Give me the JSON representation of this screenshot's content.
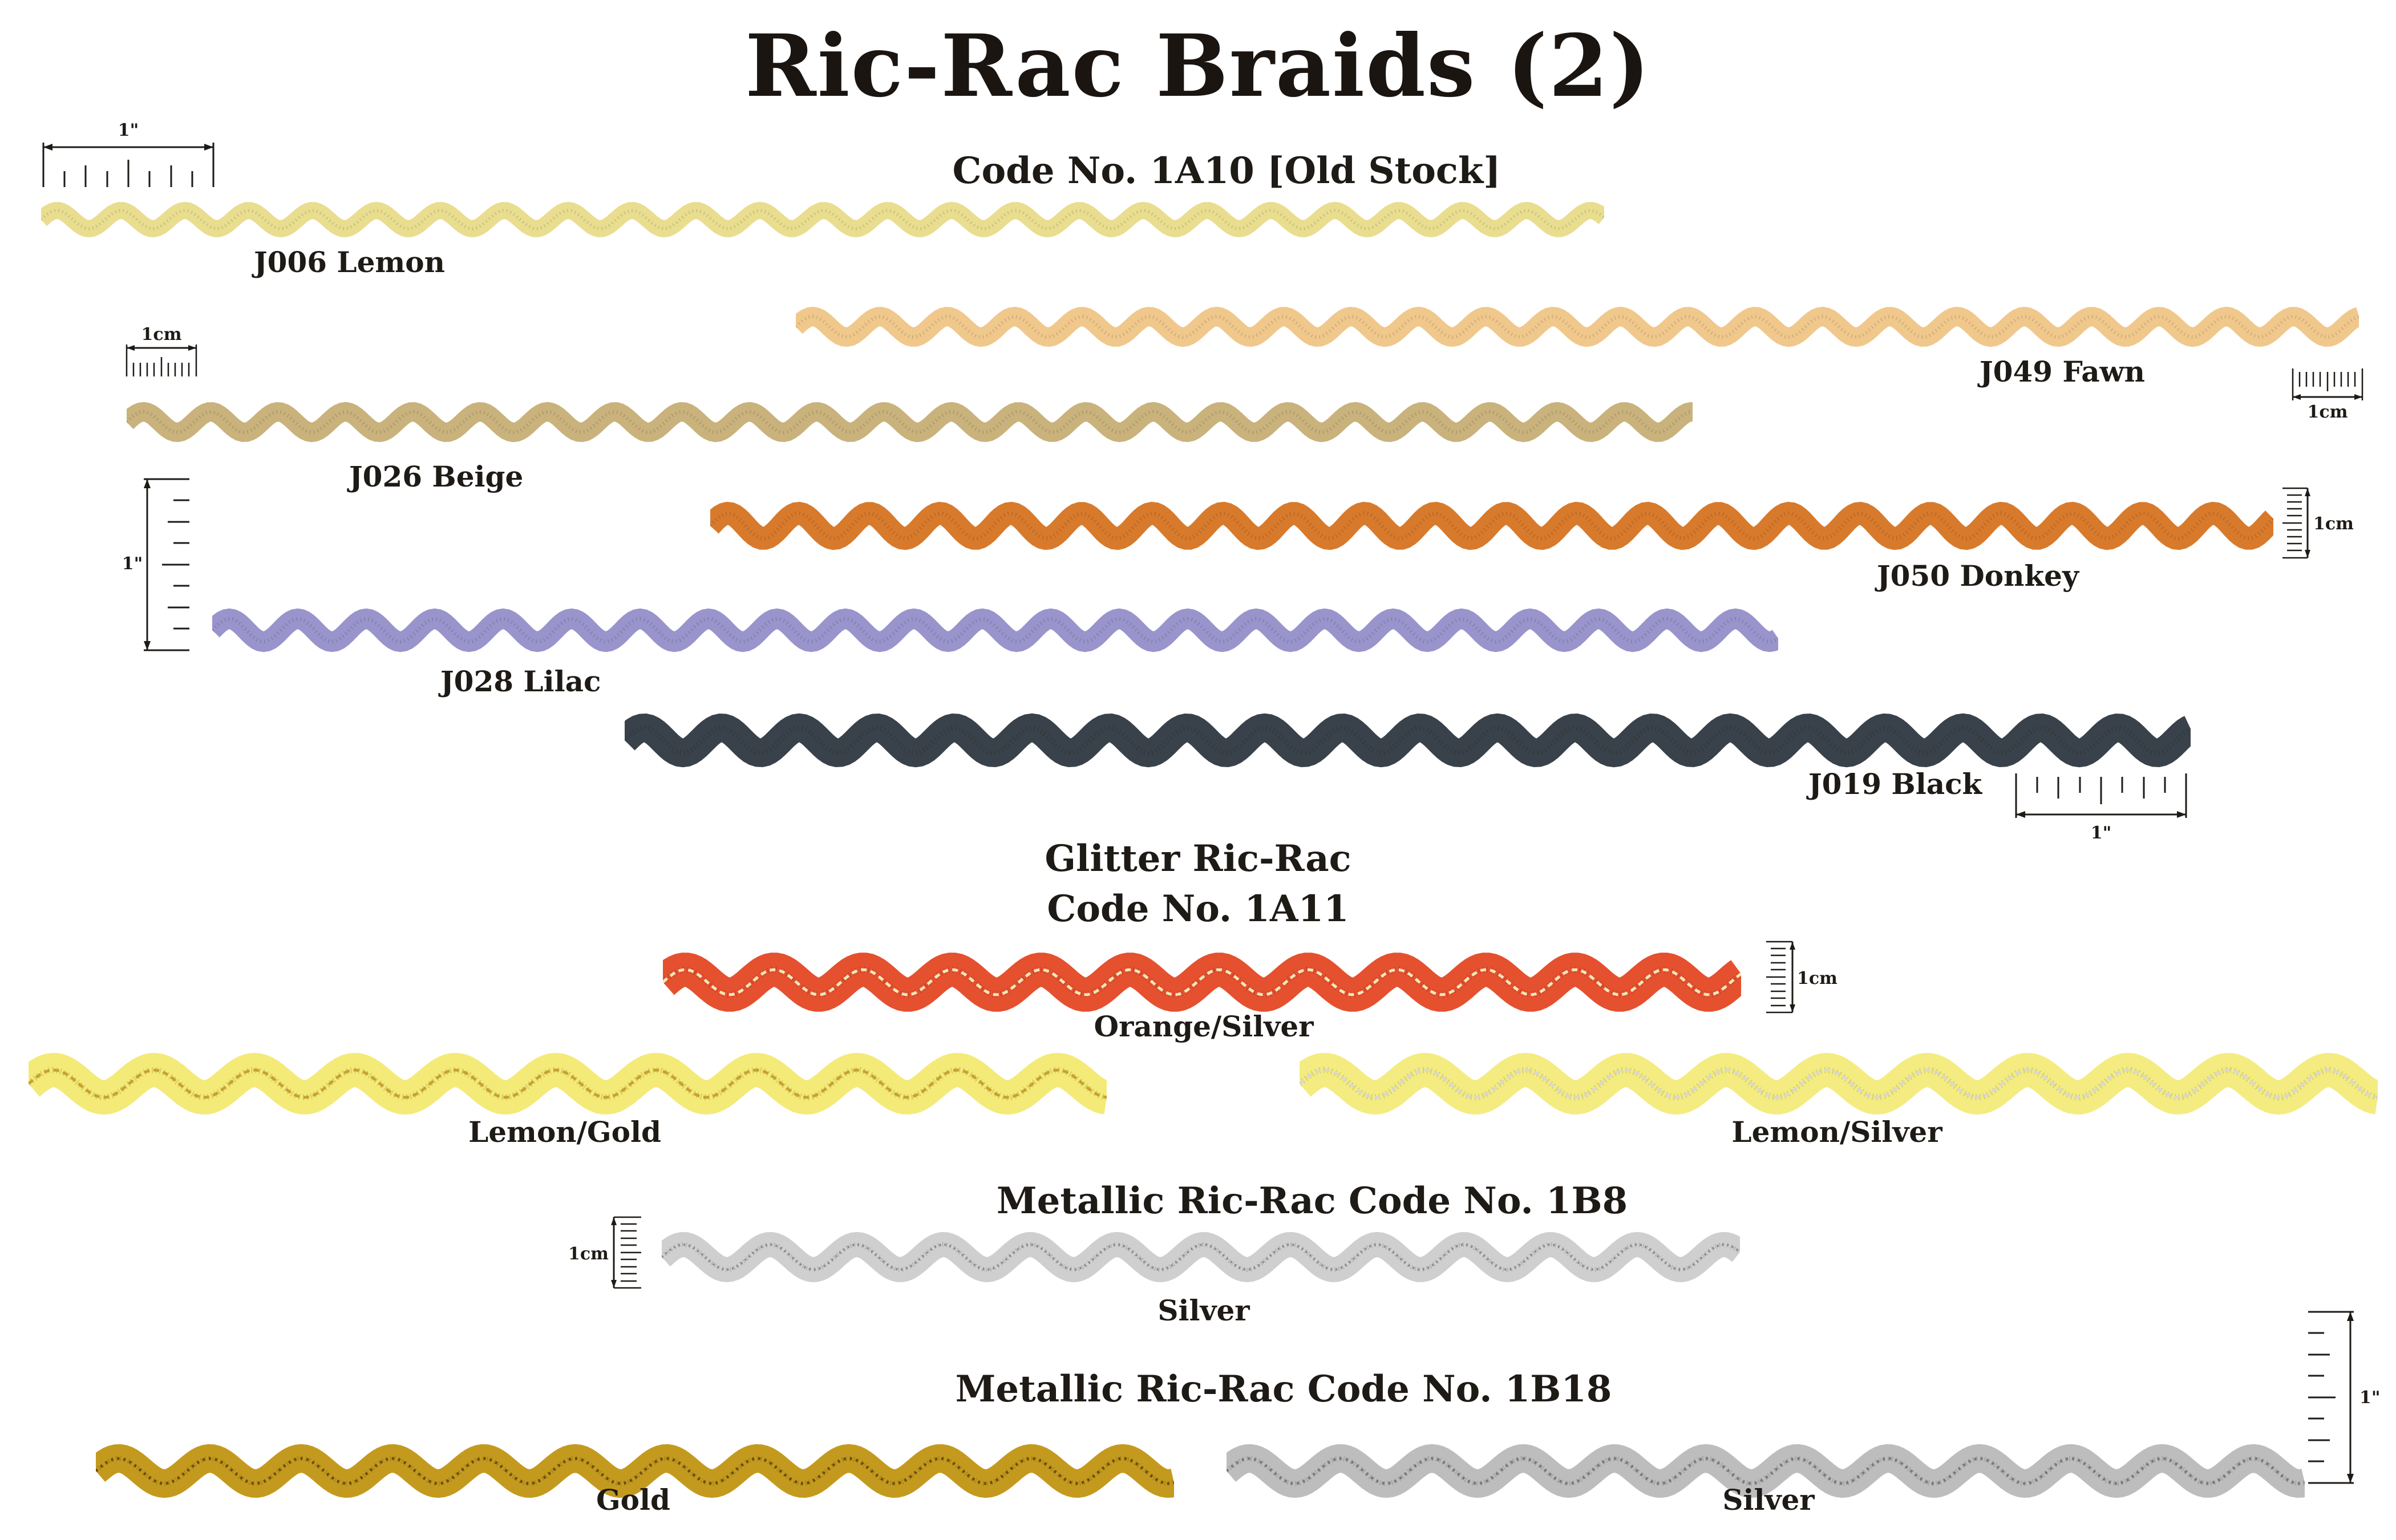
{
  "page_title": "Ric-Rac Braids (2)",
  "sections": [
    {
      "heading": "Code No.  1A10   [Old Stock]",
      "braids": [
        {
          "code_label": "J006  Lemon",
          "color": "#e9dd8f"
        },
        {
          "code_label": "J049  Fawn",
          "color": "#f0c88c"
        },
        {
          "code_label": "J026  Beige",
          "color": "#c9b27c"
        },
        {
          "code_label": "J050  Donkey",
          "color": "#d87a2c"
        },
        {
          "code_label": "J028  Lilac",
          "color": "#9994cb"
        },
        {
          "code_label": "J019  Black",
          "color": "#39424a"
        }
      ]
    },
    {
      "heading_line1": "Glitter Ric-Rac",
      "heading_line2": "Code No.  1A11",
      "braids": [
        {
          "code_label": "Orange/Silver",
          "color": "#e5502f",
          "thread_color": "#f4e6b8"
        },
        {
          "code_label": "Lemon/Gold",
          "color": "#f4ea78",
          "thread_color": "#c8a22e"
        },
        {
          "code_label": "Lemon/Silver",
          "color": "#f4ec80",
          "thread_color": "#d8d8d0"
        }
      ]
    },
    {
      "heading": "Metallic Ric-Rac   Code No.  1B8",
      "braids": [
        {
          "code_label": "Silver",
          "color": "#cfcfcf",
          "thread_color": "#8a8a8a"
        }
      ]
    },
    {
      "heading": "Metallic Ric-Rac   Code No.  1B18",
      "braids": [
        {
          "code_label": "Gold",
          "color": "#c49a1e",
          "thread_color": "#6e4e0c"
        },
        {
          "code_label": "Silver",
          "color": "#bdbdbd",
          "thread_color": "#7a7a7a"
        }
      ]
    }
  ],
  "scale_labels": {
    "inch": "1\"",
    "cm": "1cm"
  }
}
